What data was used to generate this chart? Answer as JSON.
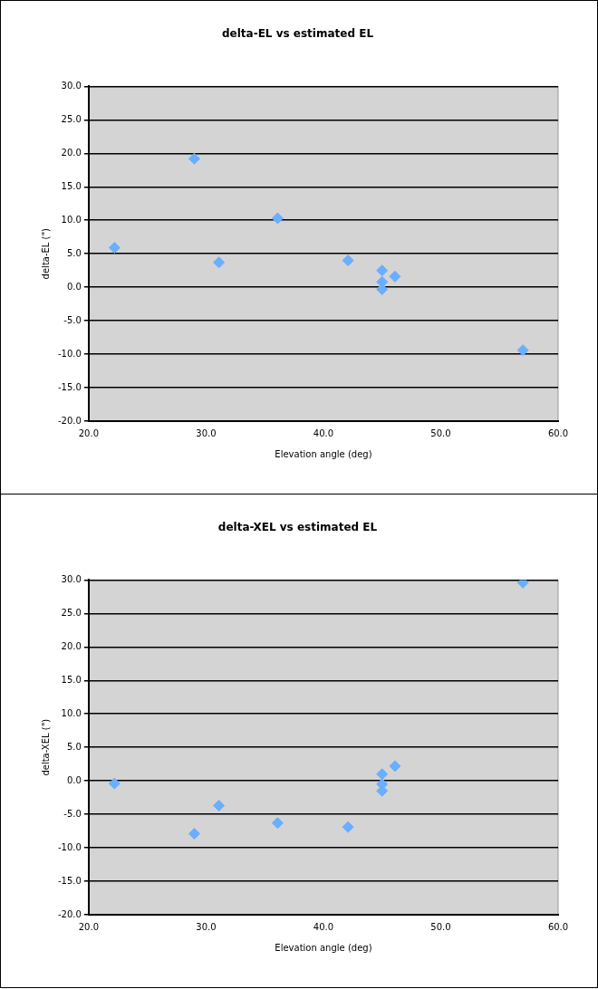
{
  "chart_data": [
    {
      "type": "scatter",
      "title": "delta-EL vs estimated EL",
      "xlabel": "Elevation angle (deg)",
      "ylabel": "delta-EL (\")",
      "series": [
        {
          "color": "#6aaeff",
          "x": [
            22.2,
            29.0,
            31.1,
            36.1,
            42.1,
            45.0,
            45.0,
            45.0,
            46.1,
            57.0
          ],
          "values": [
            5.9,
            19.2,
            3.7,
            10.3,
            4.0,
            2.5,
            0.8,
            -0.3,
            1.6,
            -9.4
          ]
        }
      ],
      "xlim": [
        20,
        60
      ],
      "xticks": [
        {
          "value": 20,
          "label": "20.0"
        },
        {
          "value": 30,
          "label": "30.0"
        },
        {
          "value": 40,
          "label": "40.0"
        },
        {
          "value": 50,
          "label": "50.0"
        },
        {
          "value": 60,
          "label": "60.0"
        }
      ],
      "ylim": [
        -20,
        30
      ],
      "yticks": [
        {
          "value": -20,
          "label": "-20.0"
        },
        {
          "value": -15,
          "label": "-15.0"
        },
        {
          "value": -10,
          "label": "-10.0"
        },
        {
          "value": -5,
          "label": "-5.0"
        },
        {
          "value": 0,
          "label": "0.0"
        },
        {
          "value": 5,
          "label": "5.0"
        },
        {
          "value": 10,
          "label": "10.0"
        },
        {
          "value": 15,
          "label": "15.0"
        },
        {
          "value": 20,
          "label": "20.0"
        },
        {
          "value": 25,
          "label": "25.0"
        },
        {
          "value": 30,
          "label": "30.0"
        }
      ],
      "grid": "y",
      "legend": false,
      "marker": "diamond"
    },
    {
      "type": "scatter",
      "title": "delta-XEL vs estimated EL",
      "xlabel": "Elevation angle (deg)",
      "ylabel": "delta-XEL (\")",
      "series": [
        {
          "color": "#6aaeff",
          "x": [
            22.2,
            29.0,
            31.1,
            36.1,
            42.1,
            45.0,
            45.0,
            45.0,
            46.1,
            57.0
          ],
          "values": [
            -0.4,
            -7.9,
            -3.7,
            -6.3,
            -6.9,
            1.0,
            -0.5,
            -1.5,
            2.2,
            29.6
          ]
        }
      ],
      "xlim": [
        20,
        60
      ],
      "xticks": [
        {
          "value": 20,
          "label": "20.0"
        },
        {
          "value": 30,
          "label": "30.0"
        },
        {
          "value": 40,
          "label": "40.0"
        },
        {
          "value": 50,
          "label": "50.0"
        },
        {
          "value": 60,
          "label": "60.0"
        }
      ],
      "ylim": [
        -20,
        30
      ],
      "yticks": [
        {
          "value": -20,
          "label": "-20.0"
        },
        {
          "value": -15,
          "label": "-15.0"
        },
        {
          "value": -10,
          "label": "-10.0"
        },
        {
          "value": -5,
          "label": "-5.0"
        },
        {
          "value": 0,
          "label": "0.0"
        },
        {
          "value": 5,
          "label": "5.0"
        },
        {
          "value": 10,
          "label": "10.0"
        },
        {
          "value": 15,
          "label": "15.0"
        },
        {
          "value": 20,
          "label": "20.0"
        },
        {
          "value": 25,
          "label": "25.0"
        },
        {
          "value": 30,
          "label": "30.0"
        }
      ],
      "grid": "y",
      "legend": false,
      "marker": "diamond"
    }
  ]
}
